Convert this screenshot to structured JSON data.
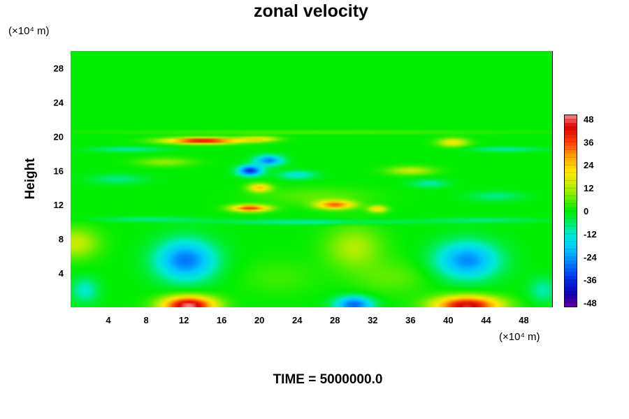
{
  "chart_data": {
    "type": "heatmap",
    "title": "zonal velocity",
    "ylabel": "Height",
    "xunit": "(×10⁴ m)",
    "yunit": "(×10⁴ m)",
    "footer": "TIME = 5000000.0",
    "xlim": [
      0,
      51
    ],
    "ylim": [
      0,
      30
    ],
    "x_ticks": [
      "4",
      "8",
      "12",
      "16",
      "20",
      "24",
      "28",
      "32",
      "36",
      "40",
      "44",
      "48"
    ],
    "y_ticks": [
      "4",
      "8",
      "12",
      "16",
      "20",
      "24",
      "28"
    ],
    "colorbar": {
      "min": -50,
      "max": 50,
      "ticks": [
        "48",
        "36",
        "24",
        "12",
        "0",
        "-12",
        "-24",
        "-36",
        "-48"
      ],
      "levels": [
        -48,
        -44,
        -40,
        -36,
        -32,
        -28,
        -24,
        -20,
        -16,
        -12,
        -8,
        -4,
        0,
        4,
        8,
        12,
        16,
        20,
        24,
        28,
        32,
        36,
        40,
        44,
        48
      ]
    },
    "background_value": 0,
    "features": [
      {
        "x": 12.5,
        "y": 0.2,
        "sx": 2.8,
        "sy": 1.1,
        "value": 50
      },
      {
        "x": 42.0,
        "y": 0.2,
        "sx": 3.5,
        "sy": 1.1,
        "value": 46
      },
      {
        "x": 30.0,
        "y": 0.3,
        "sx": 2.0,
        "sy": 1.0,
        "value": -30
      },
      {
        "x": 12.2,
        "y": 5.5,
        "sx": 3.2,
        "sy": 2.4,
        "value": -28
      },
      {
        "x": 42.0,
        "y": 5.5,
        "sx": 3.4,
        "sy": 2.2,
        "value": -26
      },
      {
        "x": 1.5,
        "y": 2.0,
        "sx": 1.5,
        "sy": 1.5,
        "value": -12
      },
      {
        "x": 50.0,
        "y": 2.0,
        "sx": 1.5,
        "sy": 1.5,
        "value": -10
      },
      {
        "x": 0.5,
        "y": 7.5,
        "sx": 2.5,
        "sy": 1.8,
        "value": 14
      },
      {
        "x": 30.0,
        "y": 7.0,
        "sx": 3.0,
        "sy": 2.5,
        "value": 12
      },
      {
        "x": 22.0,
        "y": 3.5,
        "sx": 4.0,
        "sy": 2.0,
        "value": 4
      },
      {
        "x": 34.0,
        "y": 3.5,
        "sx": 4.0,
        "sy": 2.0,
        "value": 6
      },
      {
        "x": 14.0,
        "y": 19.5,
        "sx": 4.0,
        "sy": 0.35,
        "value": 44
      },
      {
        "x": 20.0,
        "y": 19.7,
        "sx": 2.0,
        "sy": 0.3,
        "value": 20
      },
      {
        "x": 40.5,
        "y": 19.3,
        "sx": 1.6,
        "sy": 0.5,
        "value": 20
      },
      {
        "x": 19.0,
        "y": 11.6,
        "sx": 2.0,
        "sy": 0.4,
        "value": 38
      },
      {
        "x": 28.0,
        "y": 12.0,
        "sx": 2.0,
        "sy": 0.5,
        "value": 32
      },
      {
        "x": 20.0,
        "y": 14.0,
        "sx": 1.2,
        "sy": 0.5,
        "value": 24
      },
      {
        "x": 32.5,
        "y": 11.5,
        "sx": 1.0,
        "sy": 0.4,
        "value": 22
      },
      {
        "x": 19.0,
        "y": 16.0,
        "sx": 1.3,
        "sy": 0.6,
        "value": -36
      },
      {
        "x": 21.0,
        "y": 17.2,
        "sx": 1.5,
        "sy": 0.6,
        "value": -28
      },
      {
        "x": 24.0,
        "y": 15.5,
        "sx": 2.0,
        "sy": 0.5,
        "value": -14
      },
      {
        "x": 38.0,
        "y": 14.5,
        "sx": 2.0,
        "sy": 0.5,
        "value": -10
      },
      {
        "x": 10.0,
        "y": 17.0,
        "sx": 3.0,
        "sy": 0.5,
        "value": 10
      },
      {
        "x": 36.0,
        "y": 16.0,
        "sx": 2.5,
        "sy": 0.5,
        "value": 14
      },
      {
        "x": 5.0,
        "y": 15.0,
        "sx": 3.0,
        "sy": 0.6,
        "value": -8
      },
      {
        "x": 45.0,
        "y": 13.0,
        "sx": 3.0,
        "sy": 0.6,
        "value": -8
      },
      {
        "x": 26.0,
        "y": 10.0,
        "sx": 10.0,
        "sy": 0.25,
        "value": -12
      },
      {
        "x": 8.0,
        "y": 10.3,
        "sx": 6.0,
        "sy": 0.3,
        "value": -8
      },
      {
        "x": 44.0,
        "y": 10.2,
        "sx": 6.0,
        "sy": 0.3,
        "value": -8
      },
      {
        "x": 6.0,
        "y": 18.5,
        "sx": 4.0,
        "sy": 0.3,
        "value": -10
      },
      {
        "x": 46.0,
        "y": 18.5,
        "sx": 4.0,
        "sy": 0.3,
        "value": -10
      },
      {
        "x": 26.0,
        "y": 20.5,
        "sx": 22.0,
        "sy": 0.2,
        "value": 6
      },
      {
        "x": 26.0,
        "y": 13.0,
        "sx": 6.0,
        "sy": 1.0,
        "value": 6
      }
    ]
  }
}
